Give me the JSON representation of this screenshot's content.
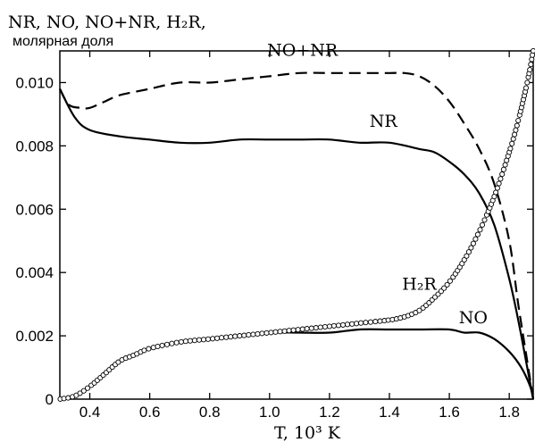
{
  "chart_data": {
    "type": "line",
    "title_line1": "NR, NO, NO+NR, H₂R,",
    "title_line2": "молярная доля",
    "xlabel": "T, 10³ K",
    "xlim": [
      0.3,
      1.88
    ],
    "ylim": [
      0,
      0.011
    ],
    "x_ticks": [
      0.4,
      0.6,
      0.8,
      1.0,
      1.2,
      1.4,
      1.6,
      1.8
    ],
    "x_tick_labels": [
      "0.4",
      "0.6",
      "0.8",
      "1.0",
      "1.2",
      "1.4",
      "1.6",
      "1.8"
    ],
    "y_ticks": [
      0,
      0.002,
      0.004,
      0.006,
      0.008,
      0.01
    ],
    "y_tick_labels": [
      "0",
      "0.002",
      "0.004",
      "0.006",
      "0.008",
      "0.010"
    ],
    "grid": false,
    "legend": "none",
    "series": [
      {
        "name": "NO+NR",
        "style": "dashed",
        "color": "#000000",
        "x": [
          0.3,
          0.33,
          0.37,
          0.4,
          0.45,
          0.5,
          0.6,
          0.7,
          0.8,
          0.9,
          1.0,
          1.1,
          1.2,
          1.3,
          1.4,
          1.45,
          1.5,
          1.55,
          1.6,
          1.65,
          1.7,
          1.75,
          1.8,
          1.83,
          1.86,
          1.88
        ],
        "y": [
          0.0098,
          0.0093,
          0.0092,
          0.0092,
          0.0094,
          0.0096,
          0.0098,
          0.01,
          0.01,
          0.0101,
          0.0102,
          0.0103,
          0.0103,
          0.0103,
          0.0103,
          0.0103,
          0.0102,
          0.0099,
          0.0094,
          0.0087,
          0.0079,
          0.0068,
          0.005,
          0.003,
          0.0012,
          0.0
        ]
      },
      {
        "name": "NR",
        "style": "solid",
        "color": "#000000",
        "x": [
          0.3,
          0.35,
          0.4,
          0.5,
          0.6,
          0.7,
          0.8,
          0.9,
          1.0,
          1.1,
          1.2,
          1.3,
          1.4,
          1.5,
          1.55,
          1.6,
          1.65,
          1.7,
          1.75,
          1.8,
          1.83,
          1.86,
          1.88
        ],
        "y": [
          0.0098,
          0.0089,
          0.0085,
          0.0083,
          0.0082,
          0.0081,
          0.0081,
          0.0082,
          0.0082,
          0.0082,
          0.0082,
          0.0081,
          0.0081,
          0.0079,
          0.0078,
          0.0075,
          0.0071,
          0.0065,
          0.0055,
          0.0038,
          0.0025,
          0.001,
          0.0
        ]
      },
      {
        "name": "NO",
        "style": "solid",
        "color": "#000000",
        "x": [
          0.3,
          0.35,
          0.4,
          0.45,
          0.5,
          0.55,
          0.6,
          0.7,
          0.8,
          0.9,
          1.0,
          1.1,
          1.2,
          1.3,
          1.4,
          1.5,
          1.6,
          1.65,
          1.7,
          1.75,
          1.8,
          1.84,
          1.87,
          1.88
        ],
        "y": [
          0.0,
          0.0001,
          0.0004,
          0.0008,
          0.0012,
          0.0014,
          0.0016,
          0.0018,
          0.0019,
          0.002,
          0.0021,
          0.0021,
          0.0021,
          0.0022,
          0.0022,
          0.0022,
          0.0022,
          0.0021,
          0.0021,
          0.0019,
          0.0015,
          0.001,
          0.0004,
          0.0
        ]
      },
      {
        "name": "H₂R",
        "style": "circles",
        "color": "#000000",
        "x": [
          0.3,
          0.35,
          0.4,
          0.45,
          0.5,
          0.55,
          0.6,
          0.7,
          0.8,
          0.9,
          1.0,
          1.1,
          1.2,
          1.3,
          1.4,
          1.45,
          1.5,
          1.55,
          1.6,
          1.65,
          1.7,
          1.75,
          1.8,
          1.83,
          1.86,
          1.88
        ],
        "y": [
          0.0,
          0.0001,
          0.0004,
          0.0008,
          0.0012,
          0.0014,
          0.0016,
          0.0018,
          0.0019,
          0.002,
          0.0021,
          0.0022,
          0.0023,
          0.0024,
          0.0025,
          0.0026,
          0.0028,
          0.0032,
          0.0037,
          0.0044,
          0.0053,
          0.0064,
          0.0078,
          0.0088,
          0.01,
          0.011
        ]
      }
    ],
    "curve_labels": [
      {
        "series": "NO+NR",
        "text": "NO+NR",
        "x": 1.11,
        "y": 0.01085
      },
      {
        "series": "NR",
        "text": "NR",
        "x": 1.38,
        "y": 0.0086
      },
      {
        "series": "H₂R",
        "text": "H₂R",
        "x": 1.5,
        "y": 0.00345
      },
      {
        "series": "NO",
        "text": "NO",
        "x": 1.68,
        "y": 0.0024
      }
    ]
  }
}
